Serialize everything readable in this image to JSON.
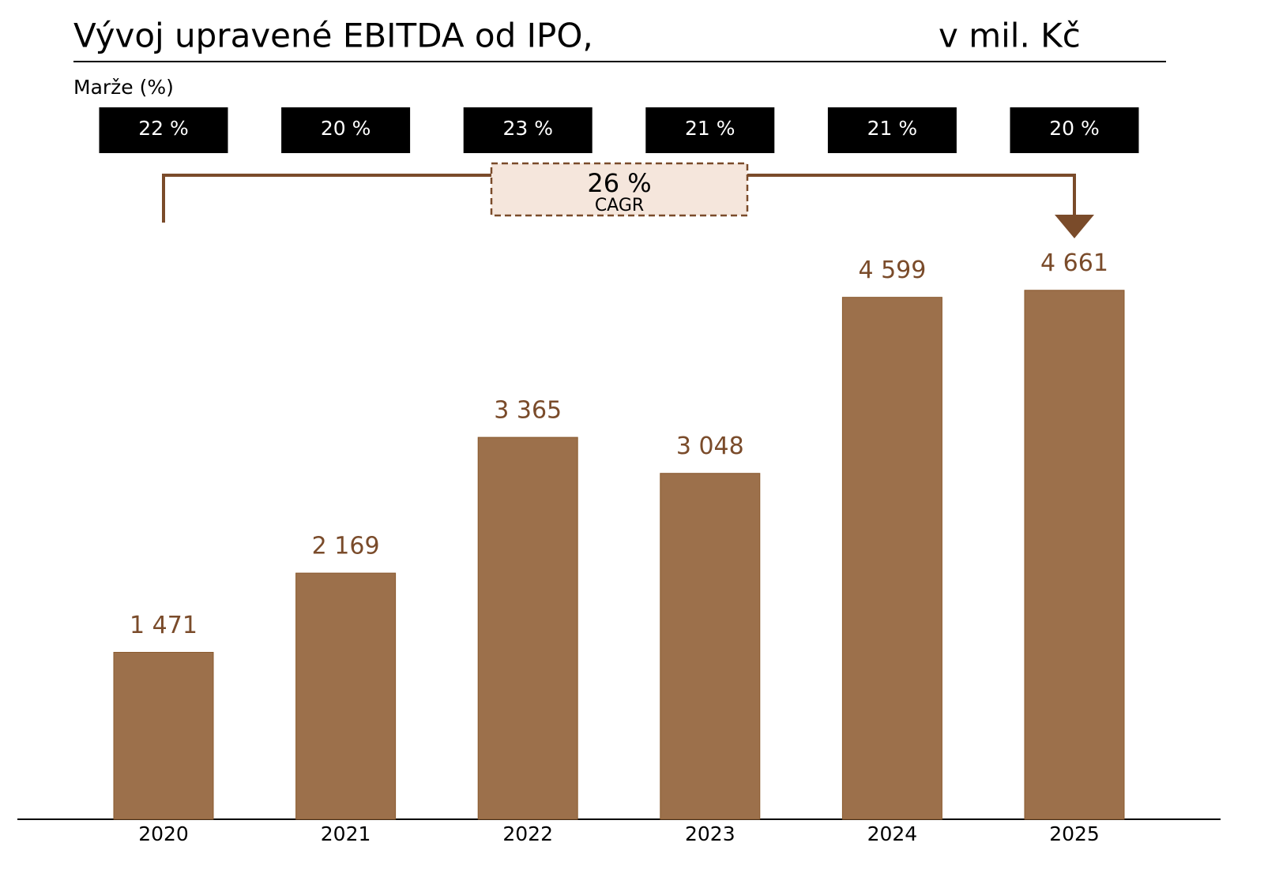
{
  "chart_data": {
    "type": "bar",
    "title": "Vývoj upravené EBITDA od IPO,",
    "subtitle": "v mil. Kč",
    "categories": [
      "2020",
      "2021",
      "2022",
      "2023",
      "2024",
      "2025"
    ],
    "values": [
      1471,
      2169,
      3365,
      3048,
      4599,
      4661
    ],
    "value_labels": [
      "1 471",
      "2 169",
      "3 365",
      "3 048",
      "4 599",
      "4 661"
    ],
    "color": "#9c704b",
    "ylim": [
      0,
      5000
    ],
    "margins": {
      "title": "Marže (%)",
      "values": [
        22,
        20,
        23,
        21,
        21,
        20
      ],
      "value_labels": [
        "22 %",
        "20 %",
        "23 %",
        "21 %",
        "21 %",
        "20 %"
      ]
    },
    "cagr": {
      "value": 26,
      "value_label": "26 %",
      "label": "CAGR"
    }
  }
}
